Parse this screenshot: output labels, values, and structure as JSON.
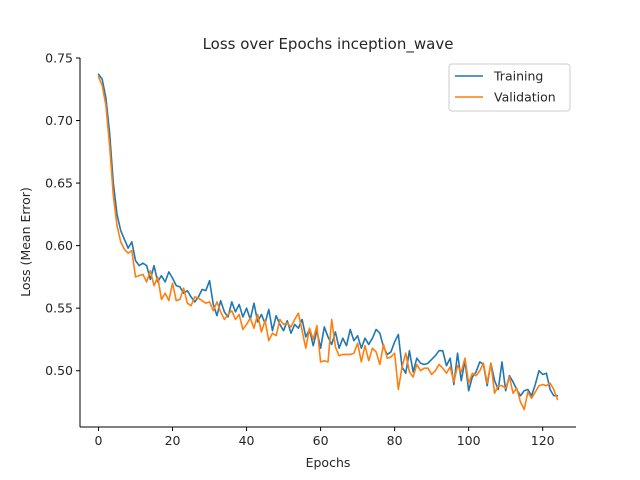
{
  "chart_data": {
    "type": "line",
    "title": "Loss over Epochs inception_wave",
    "xlabel": "Epochs",
    "ylabel": "Loss (Mean Error)",
    "xlim": [
      -5,
      129
    ],
    "ylim": [
      0.455,
      0.75
    ],
    "xticks": [
      0,
      20,
      40,
      60,
      80,
      100,
      120
    ],
    "yticks": [
      0.5,
      0.55,
      0.6,
      0.65,
      0.7,
      0.75
    ],
    "xtick_labels": [
      "0",
      "20",
      "40",
      "60",
      "80",
      "100",
      "120"
    ],
    "ytick_labels": [
      "0.50",
      "0.55",
      "0.60",
      "0.65",
      "0.70",
      "0.75"
    ],
    "grid": false,
    "legend_position": "top-right",
    "series": [
      {
        "name": "Training",
        "color": "#1f77b4",
        "values": [
          0.737,
          0.733,
          0.718,
          0.69,
          0.65,
          0.625,
          0.612,
          0.605,
          0.598,
          0.603,
          0.588,
          0.584,
          0.586,
          0.584,
          0.573,
          0.584,
          0.571,
          0.576,
          0.571,
          0.579,
          0.574,
          0.568,
          0.567,
          0.562,
          0.564,
          0.559,
          0.555,
          0.559,
          0.565,
          0.564,
          0.572,
          0.553,
          0.544,
          0.556,
          0.547,
          0.543,
          0.555,
          0.547,
          0.553,
          0.543,
          0.55,
          0.541,
          0.554,
          0.539,
          0.545,
          0.538,
          0.549,
          0.532,
          0.544,
          0.537,
          0.532,
          0.54,
          0.53,
          0.537,
          0.534,
          0.541,
          0.527,
          0.533,
          0.52,
          0.532,
          0.518,
          0.535,
          0.527,
          0.521,
          0.531,
          0.518,
          0.526,
          0.52,
          0.533,
          0.524,
          0.528,
          0.518,
          0.526,
          0.521,
          0.526,
          0.533,
          0.53,
          0.519,
          0.513,
          0.515,
          0.523,
          0.529,
          0.503,
          0.498,
          0.516,
          0.499,
          0.51,
          0.506,
          0.505,
          0.506,
          0.509,
          0.512,
          0.516,
          0.516,
          0.504,
          0.51,
          0.489,
          0.514,
          0.492,
          0.508,
          0.484,
          0.495,
          0.499,
          0.507,
          0.505,
          0.488,
          0.506,
          0.492,
          0.485,
          0.507,
          0.484,
          0.496,
          0.491,
          0.485,
          0.48,
          0.484,
          0.485,
          0.48,
          0.489,
          0.5,
          0.497,
          0.498,
          0.485,
          0.48,
          0.48
        ]
      },
      {
        "name": "Validation",
        "color": "#ff7f0e",
        "values": [
          0.735,
          0.728,
          0.712,
          0.68,
          0.64,
          0.616,
          0.603,
          0.597,
          0.594,
          0.596,
          0.575,
          0.576,
          0.577,
          0.571,
          0.58,
          0.568,
          0.575,
          0.557,
          0.562,
          0.556,
          0.57,
          0.556,
          0.557,
          0.566,
          0.554,
          0.552,
          0.559,
          0.558,
          0.556,
          0.554,
          0.555,
          0.548,
          0.555,
          0.547,
          0.541,
          0.545,
          0.548,
          0.541,
          0.545,
          0.533,
          0.537,
          0.542,
          0.534,
          0.545,
          0.531,
          0.54,
          0.524,
          0.53,
          0.528,
          0.541,
          0.537,
          0.538,
          0.535,
          0.541,
          0.546,
          0.532,
          0.518,
          0.534,
          0.525,
          0.536,
          0.507,
          0.508,
          0.507,
          0.541,
          0.519,
          0.512,
          0.513,
          0.513,
          0.513,
          0.514,
          0.522,
          0.507,
          0.52,
          0.508,
          0.518,
          0.515,
          0.505,
          0.521,
          0.51,
          0.511,
          0.514,
          0.485,
          0.503,
          0.514,
          0.499,
          0.495,
          0.505,
          0.5,
          0.502,
          0.502,
          0.497,
          0.5,
          0.505,
          0.502,
          0.498,
          0.503,
          0.491,
          0.504,
          0.499,
          0.51,
          0.49,
          0.498,
          0.496,
          0.5,
          0.506,
          0.49,
          0.506,
          0.482,
          0.488,
          0.488,
          0.486,
          0.495,
          0.482,
          0.486,
          0.475,
          0.469,
          0.483,
          0.478,
          0.483,
          0.488,
          0.489,
          0.488,
          0.49,
          0.485,
          0.477
        ]
      }
    ]
  }
}
